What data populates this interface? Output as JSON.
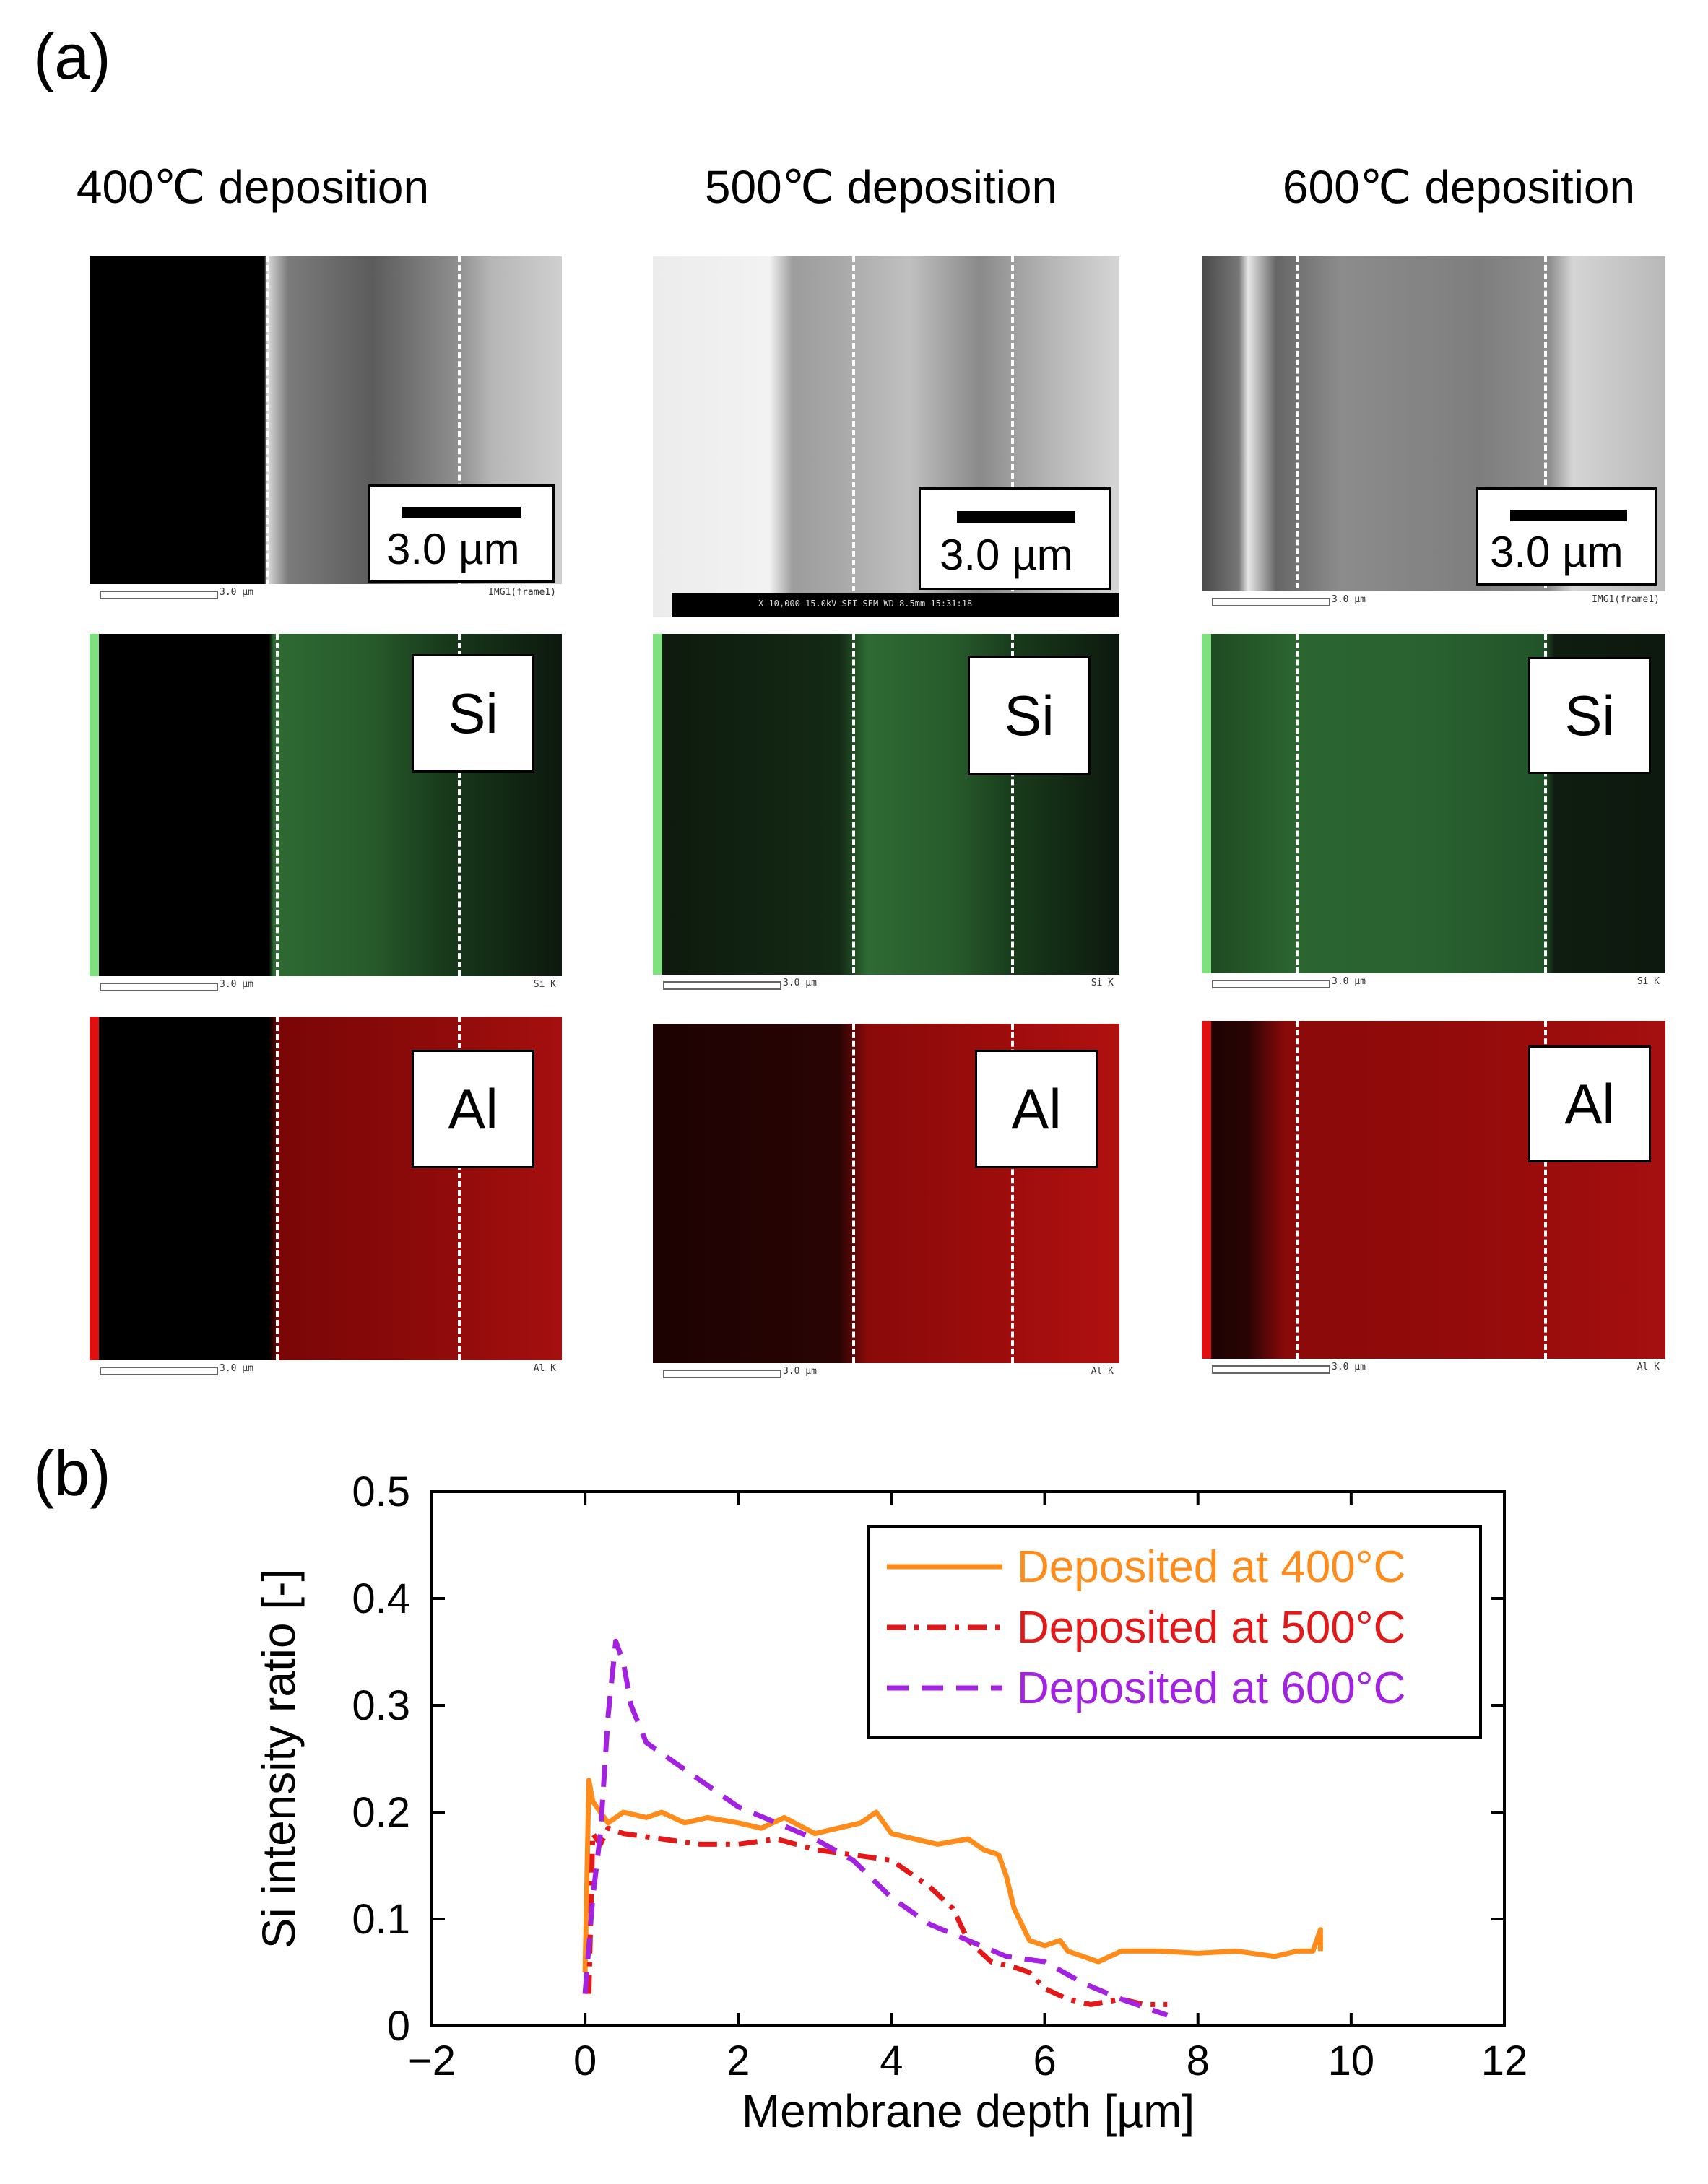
{
  "panel_a": {
    "label": "(a)",
    "columns": [
      {
        "title": "400℃ deposition",
        "scale_text": "3.0 µm",
        "si_label": "Si",
        "al_label": "Al",
        "sem_footer": "IMG1(frame1)",
        "si_footer": "Si K",
        "al_footer": "Al K",
        "bar_text": "3.0 µm"
      },
      {
        "title": "500℃ deposition",
        "scale_text": "3.0 µm",
        "si_label": "Si",
        "al_label": "Al",
        "sem_footer": "X 10,000   15.0kV SEI   SEM   WD 8.5mm 15:31:18",
        "si_footer": "Si K",
        "al_footer": "Al K",
        "bar_text": "3.0 µm"
      },
      {
        "title": "600℃ deposition",
        "scale_text": "3.0 µm",
        "si_label": "Si",
        "al_label": "Al",
        "sem_footer": "IMG1(frame1)",
        "si_footer": "Si K",
        "al_footer": "Al K",
        "bar_text": "3.0 µm"
      }
    ]
  },
  "panel_b": {
    "label": "(b)"
  },
  "chart_data": {
    "type": "line",
    "xlabel": "Membrane depth [µm]",
    "ylabel": "Si intensity ratio [-]",
    "xlim": [
      -2,
      12
    ],
    "ylim": [
      0,
      0.5
    ],
    "xticks": [
      -2,
      0,
      2,
      4,
      6,
      8,
      10,
      12
    ],
    "yticks": [
      0,
      0.1,
      0.2,
      0.3,
      0.4,
      0.5
    ],
    "xtick_labels": [
      "−2",
      "0",
      "2",
      "4",
      "6",
      "8",
      "10",
      "12"
    ],
    "ytick_labels": [
      "0",
      "0.1",
      "0.2",
      "0.3",
      "0.4",
      "0.5"
    ],
    "legend_position": "top-right",
    "series": [
      {
        "name": "Deposited at 400°C",
        "color": "#ff8c1a",
        "dash": "solid",
        "x": [
          0,
          0.05,
          0.1,
          0.2,
          0.3,
          0.5,
          0.8,
          1.0,
          1.3,
          1.6,
          2.0,
          2.3,
          2.6,
          3.0,
          3.3,
          3.6,
          3.8,
          4.0,
          4.3,
          4.6,
          5.0,
          5.2,
          5.4,
          5.5,
          5.6,
          5.7,
          5.8,
          6.0,
          6.2,
          6.3,
          6.5,
          6.7,
          7.0,
          7.5,
          8.0,
          8.5,
          9.0,
          9.3,
          9.5,
          9.6,
          9.6
        ],
        "y": [
          0.05,
          0.23,
          0.21,
          0.2,
          0.19,
          0.2,
          0.195,
          0.2,
          0.19,
          0.195,
          0.19,
          0.185,
          0.195,
          0.18,
          0.185,
          0.19,
          0.2,
          0.18,
          0.175,
          0.17,
          0.175,
          0.165,
          0.16,
          0.14,
          0.11,
          0.095,
          0.08,
          0.075,
          0.08,
          0.07,
          0.065,
          0.06,
          0.07,
          0.07,
          0.068,
          0.07,
          0.065,
          0.07,
          0.07,
          0.09,
          0.07
        ]
      },
      {
        "name": "Deposited at 500°C",
        "color": "#e31919",
        "dash": "dashdot",
        "x": [
          0.05,
          0.1,
          0.2,
          0.3,
          0.5,
          1.0,
          1.5,
          2.0,
          2.5,
          3.0,
          3.5,
          4.0,
          4.2,
          4.5,
          4.8,
          5.0,
          5.3,
          5.6,
          5.8,
          6.0,
          6.3,
          6.6,
          7.0,
          7.3,
          7.6
        ],
        "y": [
          0.03,
          0.18,
          0.17,
          0.185,
          0.18,
          0.175,
          0.17,
          0.17,
          0.175,
          0.165,
          0.16,
          0.155,
          0.145,
          0.13,
          0.11,
          0.08,
          0.06,
          0.055,
          0.05,
          0.035,
          0.025,
          0.02,
          0.025,
          0.02,
          0.02
        ]
      },
      {
        "name": "Deposited at 600°C",
        "color": "#a321e0",
        "dash": "dashed",
        "x": [
          0.0,
          0.1,
          0.2,
          0.3,
          0.4,
          0.5,
          0.6,
          0.8,
          1.0,
          1.5,
          2.0,
          2.5,
          3.0,
          3.5,
          4.0,
          4.5,
          5.0,
          5.5,
          6.0,
          6.5,
          7.0,
          7.4,
          7.6
        ],
        "y": [
          0.03,
          0.12,
          0.18,
          0.29,
          0.36,
          0.34,
          0.3,
          0.265,
          0.255,
          0.23,
          0.205,
          0.19,
          0.175,
          0.155,
          0.12,
          0.095,
          0.08,
          0.065,
          0.06,
          0.04,
          0.025,
          0.015,
          0.01
        ]
      }
    ]
  }
}
